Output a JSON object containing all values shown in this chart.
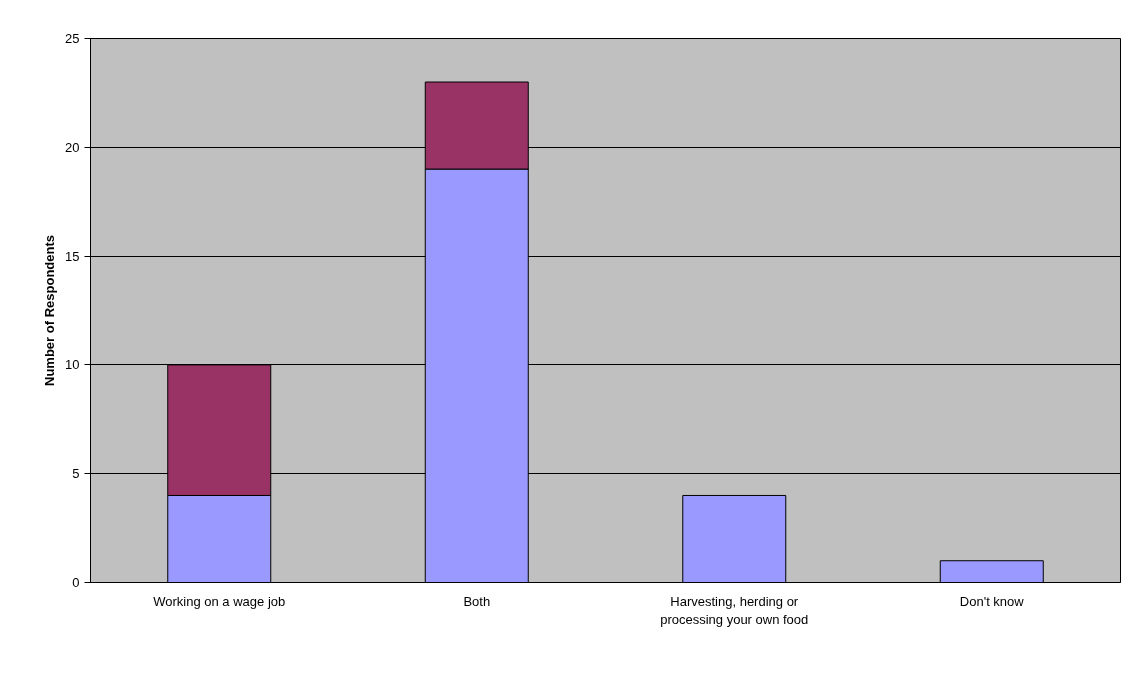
{
  "chart_data": {
    "type": "bar",
    "stacked": true,
    "ylabel": "Number of Respondents",
    "categories": [
      "Working on a wage job",
      "Both",
      "Harvesting, herding or processing your own food",
      "Don't know"
    ],
    "series": [
      {
        "color": "#9999ff",
        "values": [
          4,
          19,
          4,
          1
        ]
      },
      {
        "color": "#993366",
        "values": [
          6,
          4,
          null,
          null
        ]
      }
    ],
    "ylim": [
      0,
      25
    ],
    "yticks": [
      0,
      5,
      10,
      15,
      20,
      25
    ],
    "grid": "y"
  }
}
